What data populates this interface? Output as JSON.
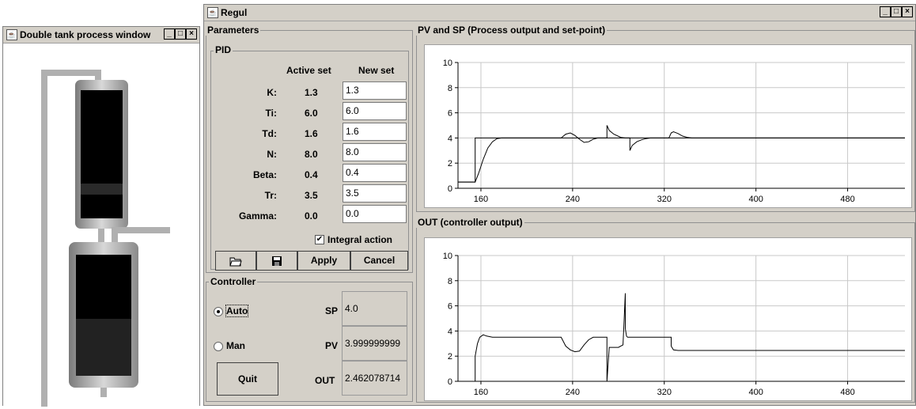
{
  "tank_window": {
    "title": "Double tank process window",
    "buttons": [
      "_",
      "□",
      "×"
    ]
  },
  "regul_window": {
    "title": "Regul",
    "buttons": [
      "_",
      "□",
      "×"
    ]
  },
  "parameters": {
    "title": "Parameters",
    "pid": {
      "title": "PID",
      "active_header": "Active set",
      "new_header": "New set",
      "rows": [
        {
          "label": "K:",
          "active": "1.3",
          "new": "1.3"
        },
        {
          "label": "Ti:",
          "active": "6.0",
          "new": "6.0"
        },
        {
          "label": "Td:",
          "active": "1.6",
          "new": "1.6"
        },
        {
          "label": "N:",
          "active": "8.0",
          "new": "8.0"
        },
        {
          "label": "Beta:",
          "active": "0.4",
          "new": "0.4"
        },
        {
          "label": "Tr:",
          "active": "3.5",
          "new": "3.5"
        },
        {
          "label": "Gamma:",
          "active": "0.0",
          "new": "0.0"
        }
      ],
      "integral_label": "Integral action",
      "integral_checked": true,
      "open_icon": "folder-open-icon",
      "save_icon": "floppy-disk-icon",
      "apply_label": "Apply",
      "cancel_label": "Cancel"
    }
  },
  "controller": {
    "title": "Controller",
    "auto_label": "Auto",
    "man_label": "Man",
    "mode": "Auto",
    "sp_label": "SP",
    "sp_value": "4.0",
    "pv_label": "PV",
    "pv_value": "3.999999999",
    "out_label": "OUT",
    "out_value": "2.462078714",
    "quit_label": "Quit"
  },
  "chart_data": [
    {
      "type": "line",
      "title": "PV and SP (Process output and set-point)",
      "xlabel": "",
      "ylabel": "",
      "xlim": [
        140,
        530
      ],
      "ylim": [
        0,
        10
      ],
      "xticks": [
        160,
        240,
        320,
        400,
        480
      ],
      "yticks": [
        0,
        2,
        4,
        6,
        8,
        10
      ],
      "grid": true,
      "series": [
        {
          "color": "#000000",
          "x": [
            140,
            155,
            155,
            530
          ],
          "y": [
            0.5,
            0.5,
            4,
            4
          ]
        },
        {
          "color": "#000000",
          "x": [
            140,
            155,
            158,
            162,
            166,
            170,
            174,
            178,
            230,
            234,
            238,
            242,
            246,
            250,
            254,
            258,
            262,
            266,
            270,
            270,
            272,
            276,
            282,
            286,
            290,
            290,
            292,
            296,
            300,
            304,
            308,
            312,
            316,
            320,
            324,
            326,
            328,
            332,
            336,
            340,
            344,
            530
          ],
          "y": [
            0.5,
            0.5,
            1.2,
            2.3,
            3.2,
            3.7,
            3.95,
            4,
            4,
            4.3,
            4.4,
            4.2,
            3.9,
            3.65,
            3.7,
            3.9,
            4,
            4,
            4,
            5,
            4.6,
            4.3,
            4.05,
            4,
            4,
            3,
            3.4,
            3.7,
            3.85,
            3.95,
            4,
            4,
            4,
            4,
            4,
            4.4,
            4.5,
            4.35,
            4.15,
            4.05,
            4,
            4
          ]
        }
      ]
    },
    {
      "type": "line",
      "title": "OUT (controller output)",
      "xlabel": "",
      "ylabel": "",
      "xlim": [
        140,
        530
      ],
      "ylim": [
        0,
        10
      ],
      "xticks": [
        160,
        240,
        320,
        400,
        480
      ],
      "yticks": [
        0,
        2,
        4,
        6,
        8,
        10
      ],
      "grid": true,
      "series": [
        {
          "color": "#000000",
          "x": [
            155,
            155,
            157,
            159,
            162,
            165,
            170,
            178,
            230,
            234,
            238,
            242,
            246,
            250,
            254,
            258,
            262,
            266,
            270,
            270,
            272,
            280,
            284,
            286,
            286,
            287,
            288,
            290,
            292,
            296,
            300,
            326,
            326,
            328,
            332,
            530
          ],
          "y": [
            0,
            2,
            3,
            3.5,
            3.7,
            3.6,
            3.5,
            3.5,
            3.5,
            2.8,
            2.5,
            2.35,
            2.4,
            2.9,
            3.3,
            3.5,
            3.5,
            3.5,
            3.5,
            0,
            2.7,
            2.7,
            2.9,
            7,
            4.2,
            3.6,
            3.5,
            3.5,
            3.5,
            3.5,
            3.5,
            3.5,
            2.8,
            2.5,
            2.45,
            2.45
          ]
        }
      ]
    }
  ]
}
